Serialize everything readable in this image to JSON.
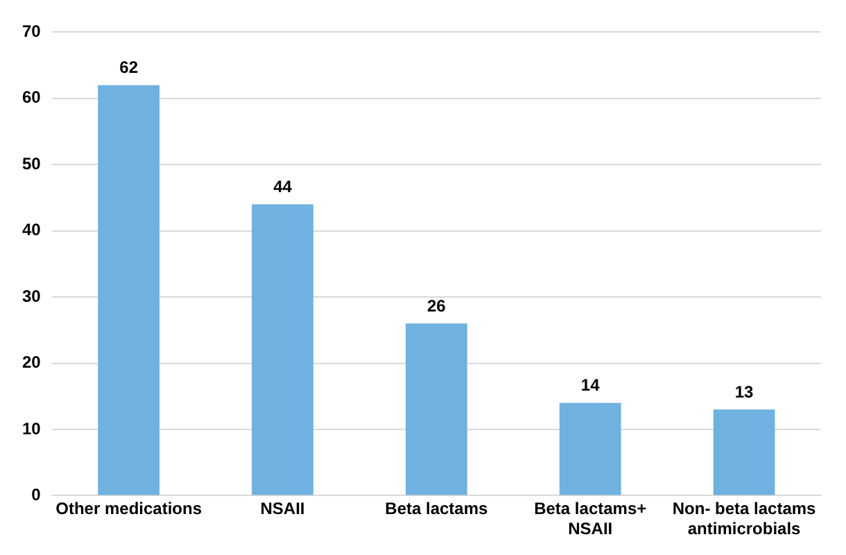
{
  "chart_data": {
    "type": "bar",
    "categories": [
      "Other medications",
      "NSAII",
      "Beta lactams",
      "Beta lactams+ NSAII",
      "Non- beta lactams antimicrobials"
    ],
    "values": [
      62,
      44,
      26,
      14,
      13
    ],
    "color": "#6fb1e0",
    "ylim": [
      0,
      70
    ],
    "yticks": [
      0,
      10,
      20,
      30,
      40,
      50,
      60,
      70
    ],
    "grid": "y",
    "data_labels": true,
    "legend": false
  }
}
